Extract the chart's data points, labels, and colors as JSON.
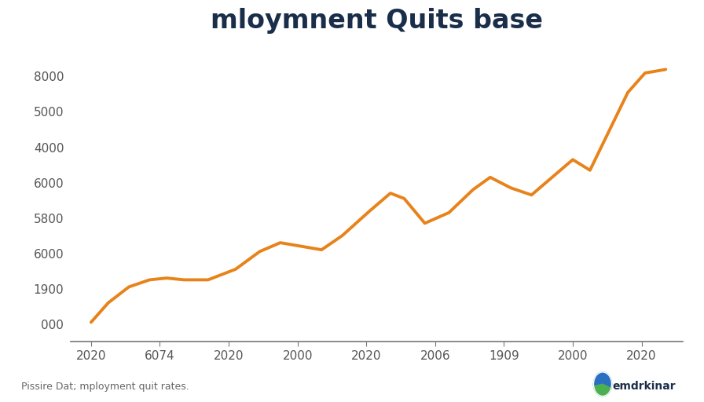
{
  "title": "mloymnent Quits base",
  "title_color": "#1a2e4a",
  "title_fontsize": 24,
  "title_fontweight": "bold",
  "line_color": "#e8821a",
  "line_width": 2.8,
  "background_color": "#ffffff",
  "ytick_labels": [
    "000",
    "1900",
    "6000",
    "5800",
    "6000",
    "4000",
    "5000",
    "8000"
  ],
  "ytick_positions": [
    0,
    1,
    2,
    3,
    4,
    5,
    6,
    7
  ],
  "xtick_labels": [
    "2020",
    "6074",
    "2020",
    "2000",
    "2020",
    "2006",
    "1909",
    "2000",
    "2020"
  ],
  "xtick_positions": [
    0,
    1,
    2,
    3,
    4,
    5,
    6,
    7,
    8
  ],
  "footer_left": "Pissire Dat; mployment quit rates.",
  "footer_right": "emdrkinar",
  "xlim": [
    -0.3,
    8.6
  ],
  "ylim": [
    -0.5,
    7.8
  ],
  "x_data": [
    0.0,
    0.25,
    0.55,
    0.85,
    1.1,
    1.35,
    1.7,
    2.1,
    2.45,
    2.75,
    3.05,
    3.35,
    3.65,
    4.05,
    4.35,
    4.55,
    4.85,
    5.2,
    5.55,
    5.8,
    6.1,
    6.4,
    6.7,
    7.0,
    7.25,
    7.55,
    7.8,
    8.05,
    8.35
  ],
  "y_data": [
    0.05,
    0.6,
    1.05,
    1.25,
    1.3,
    1.25,
    1.25,
    1.55,
    2.05,
    2.3,
    2.2,
    2.1,
    2.5,
    3.2,
    3.7,
    3.55,
    2.85,
    3.15,
    3.8,
    4.15,
    3.85,
    3.65,
    4.15,
    4.65,
    4.35,
    5.55,
    6.55,
    7.1,
    7.2
  ]
}
